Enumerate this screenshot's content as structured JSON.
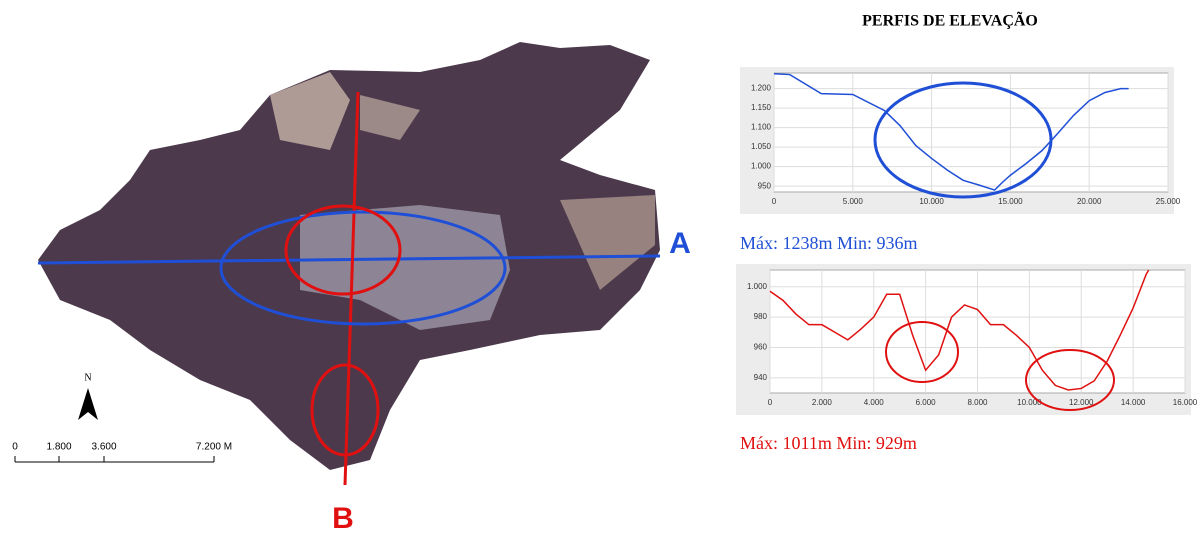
{
  "title": "PERFIS DE ELEVAÇÃO",
  "map": {
    "labels": {
      "a": "A",
      "b": "B",
      "north": "N"
    },
    "scale": [
      "0",
      "1.800",
      "3.600",
      "7.200 M"
    ]
  },
  "chart_data": [
    {
      "type": "line",
      "color": "#1f4fd6",
      "caption": "Máx: 1238m  Min: 936m",
      "x": [
        0,
        1000,
        3000,
        5000,
        7000,
        8000,
        9000,
        10000,
        11000,
        12000,
        13000,
        14000,
        14500,
        15000,
        16000,
        17000,
        18000,
        19000,
        20000,
        21000,
        22000,
        22500
      ],
      "values": [
        1238,
        1236,
        1187,
        1185,
        1144,
        1105,
        1054,
        1021,
        991,
        965,
        953,
        940,
        960,
        978,
        1008,
        1041,
        1085,
        1131,
        1169,
        1190,
        1200,
        1200
      ],
      "xlim": [
        0,
        25000
      ],
      "ylim": [
        935,
        1240
      ],
      "xticks": [
        0,
        {
          "value": 5000,
          "label": "5.000"
        },
        {
          "value": 10000,
          "label": "10.000"
        },
        {
          "value": 15000,
          "label": "15.000"
        },
        {
          "value": 20000,
          "label": "20.000"
        },
        {
          "value": 25000,
          "label": "25.000"
        }
      ],
      "yticks": [
        950,
        {
          "value": 1000,
          "label": "1.000"
        },
        {
          "value": 1050,
          "label": "1.050"
        },
        {
          "value": 1100,
          "label": "1.100"
        },
        {
          "value": 1150,
          "label": "1.150"
        },
        {
          "value": 1200,
          "label": "1.200"
        }
      ],
      "grid": true
    },
    {
      "type": "line",
      "color": "#e01010",
      "caption": "Máx: 1011m  Min: 929m",
      "x": [
        0,
        500,
        1000,
        1500,
        2000,
        2500,
        3000,
        3500,
        4000,
        4500,
        5000,
        5500,
        6000,
        6500,
        7000,
        7500,
        8000,
        8500,
        9000,
        9500,
        10000,
        10500,
        11000,
        11500,
        12000,
        12500,
        13000,
        13500,
        14000,
        14500,
        14600
      ],
      "values": [
        997,
        991,
        982,
        975,
        975,
        970,
        965,
        972,
        980,
        995,
        995,
        968,
        945,
        955,
        980,
        988,
        985,
        975,
        975,
        968,
        960,
        945,
        935,
        932,
        933,
        938,
        951,
        968,
        986,
        1008,
        1011
      ],
      "xlim": [
        0,
        16000
      ],
      "ylim": [
        930,
        1011
      ],
      "xticks": [
        0,
        {
          "value": 2000,
          "label": "2.000"
        },
        {
          "value": 4000,
          "label": "4.000"
        },
        {
          "value": 6000,
          "label": "6.000"
        },
        {
          "value": 8000,
          "label": "8.000"
        },
        {
          "value": 10000,
          "label": "10.000"
        },
        {
          "value": 12000,
          "label": "12.000"
        },
        {
          "value": 14000,
          "label": "14.000"
        },
        {
          "value": 16000,
          "label": "16.000"
        }
      ],
      "yticks": [
        940,
        960,
        980,
        {
          "value": 1000,
          "label": "1.000"
        }
      ],
      "grid": true
    }
  ]
}
